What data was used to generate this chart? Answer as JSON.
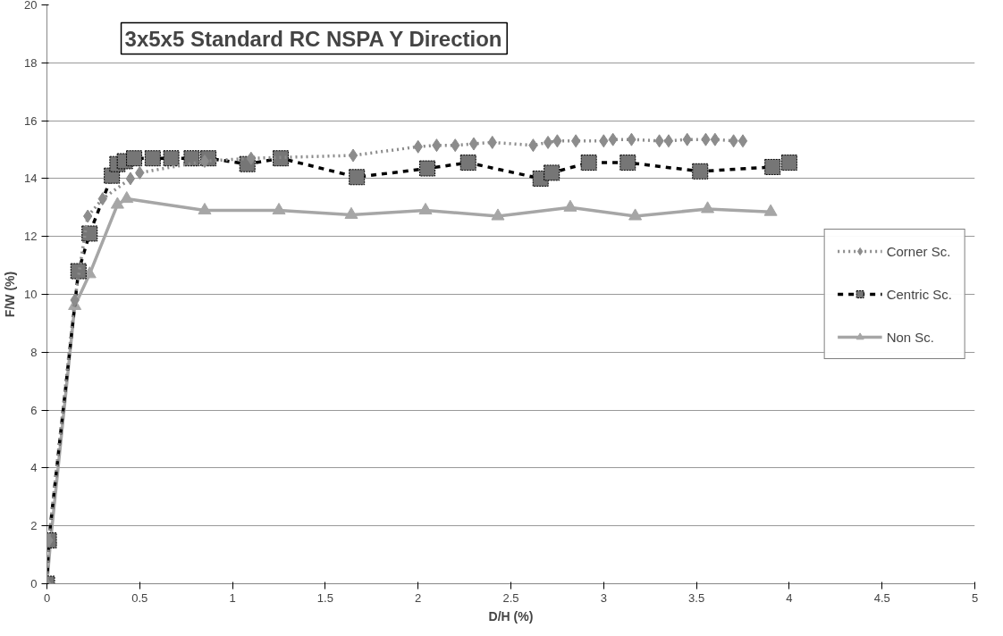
{
  "chart_data": {
    "type": "line",
    "title": "3x5x5 Standard RC NSPA Y Direction",
    "xlabel": "D/H (%)",
    "ylabel": "F/W (%)",
    "xlim": [
      0,
      5
    ],
    "xticks": [
      0,
      0.5,
      1,
      1.5,
      2,
      2.5,
      3,
      3.5,
      4,
      4.5,
      5
    ],
    "ylim": [
      0,
      20
    ],
    "yticks": [
      0,
      2,
      4,
      6,
      8,
      10,
      12,
      14,
      16,
      18,
      20
    ],
    "grid": "y",
    "legend": "right",
    "series": [
      {
        "name": "Corner Sc.",
        "color": "#8c8c8c",
        "marker": "diamond",
        "line_style": "dotted",
        "x": [
          0,
          0.01,
          0.15,
          0.22,
          0.3,
          0.45,
          0.5,
          0.85,
          1.1,
          1.65,
          2.0,
          2.1,
          2.2,
          2.3,
          2.4,
          2.62,
          2.7,
          2.75,
          2.85,
          3.0,
          3.05,
          3.15,
          3.3,
          3.35,
          3.45,
          3.55,
          3.6,
          3.7,
          3.75
        ],
        "values": [
          0,
          1.5,
          9.8,
          12.7,
          13.3,
          14.0,
          14.2,
          14.6,
          14.7,
          14.8,
          15.1,
          15.15,
          15.15,
          15.2,
          15.25,
          15.15,
          15.25,
          15.3,
          15.3,
          15.3,
          15.35,
          15.35,
          15.3,
          15.3,
          15.35,
          15.35,
          15.35,
          15.3,
          15.3
        ]
      },
      {
        "name": "Centric Sc.",
        "color": "#767676",
        "marker": "square",
        "line_style": "dashed",
        "x": [
          0,
          0.01,
          0.17,
          0.23,
          0.35,
          0.38,
          0.42,
          0.47,
          0.57,
          0.67,
          0.78,
          0.87,
          1.08,
          1.26,
          1.67,
          2.05,
          2.27,
          2.66,
          2.72,
          2.92,
          3.13,
          3.52,
          3.91,
          4.0
        ],
        "values": [
          0,
          1.5,
          10.8,
          12.1,
          14.1,
          14.5,
          14.6,
          14.7,
          14.7,
          14.7,
          14.7,
          14.7,
          14.5,
          14.7,
          14.05,
          14.35,
          14.55,
          14.0,
          14.2,
          14.55,
          14.55,
          14.25,
          14.4,
          14.55
        ]
      },
      {
        "name": "Non Sc.",
        "color": "#a6a6a6",
        "marker": "triangle",
        "line_style": "solid",
        "x": [
          0,
          0.02,
          0.15,
          0.23,
          0.38,
          0.43,
          0.85,
          1.25,
          1.64,
          2.04,
          2.43,
          2.82,
          3.17,
          3.56,
          3.9
        ],
        "values": [
          0,
          1.5,
          9.6,
          10.7,
          13.1,
          13.3,
          12.9,
          12.9,
          12.75,
          12.9,
          12.7,
          13.0,
          12.7,
          12.95,
          12.85
        ]
      }
    ]
  }
}
